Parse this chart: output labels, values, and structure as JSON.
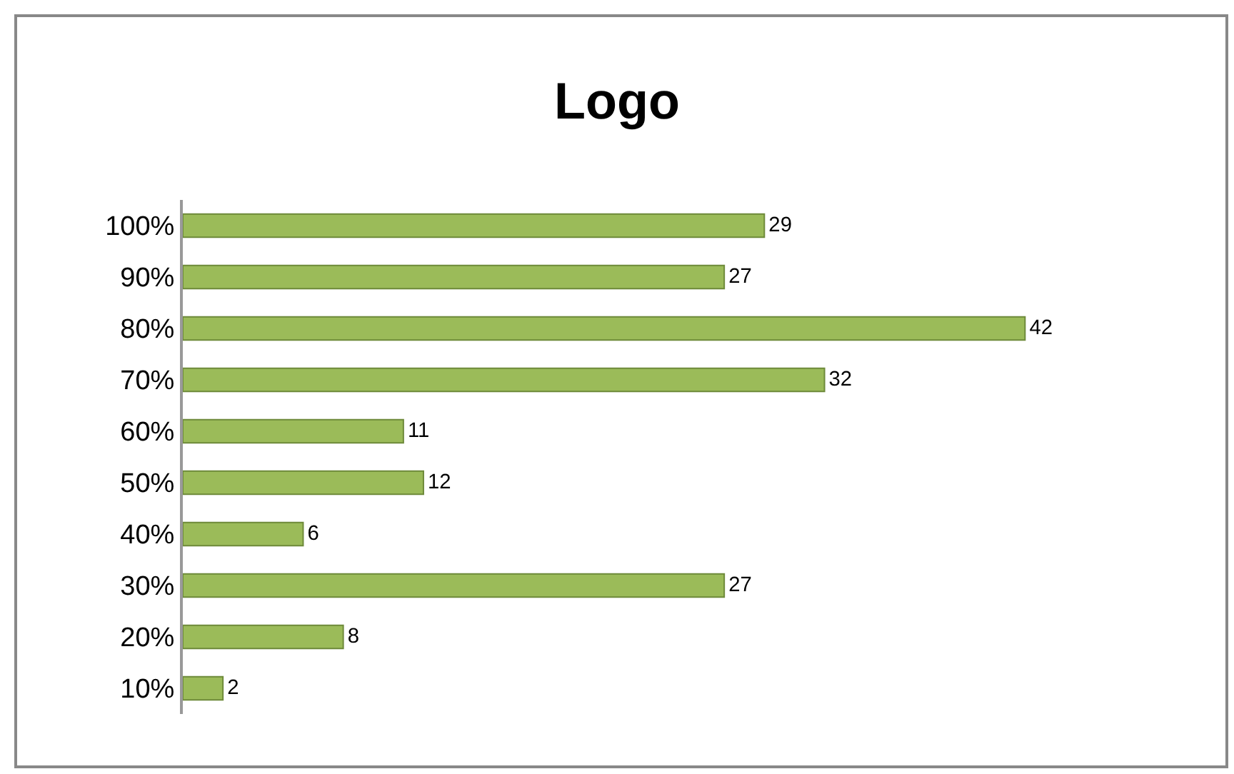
{
  "chart_data": {
    "type": "bar",
    "orientation": "horizontal",
    "title": "Logo",
    "categories": [
      "100%",
      "90%",
      "80%",
      "70%",
      "60%",
      "50%",
      "40%",
      "30%",
      "20%",
      "10%"
    ],
    "values": [
      29,
      27,
      42,
      32,
      11,
      12,
      6,
      27,
      8,
      2
    ],
    "color": "#9bbb59",
    "data_labels": true,
    "grid": false,
    "legend": false
  }
}
